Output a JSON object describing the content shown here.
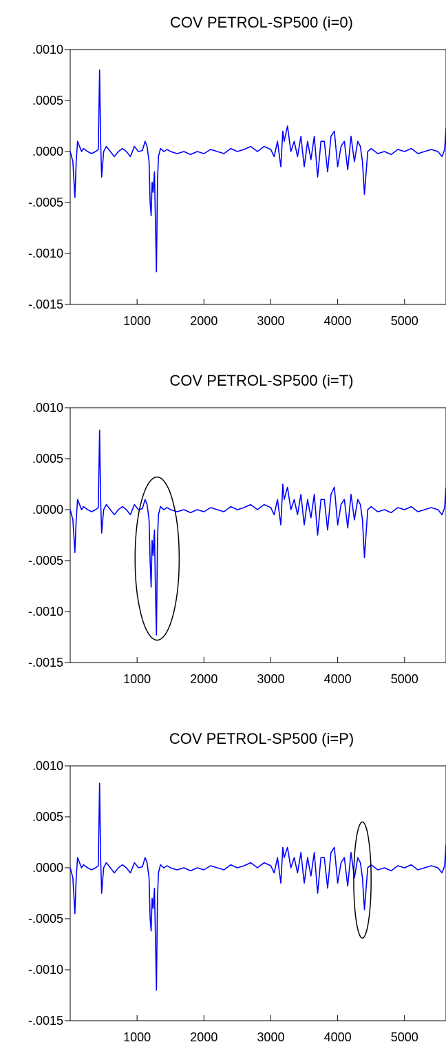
{
  "chart_data": [
    {
      "type": "line",
      "title": "COV PETROL-SP500 (i=0)",
      "xlabel": "",
      "ylabel": "",
      "xlim": [
        0,
        5620
      ],
      "ylim": [
        -0.0015,
        0.001
      ],
      "x_ticks": [
        1000,
        2000,
        3000,
        4000,
        5000
      ],
      "x_tick_labels": [
        "1000",
        "2000",
        "3000",
        "4000",
        "5000"
      ],
      "y_ticks": [
        0.001,
        0.0005,
        0.0,
        -0.0005,
        -0.001,
        -0.0015
      ],
      "y_tick_labels": [
        ".0010",
        ".0005",
        ".0000",
        "-.0005",
        "-.0010",
        "-.0015"
      ],
      "grid": false,
      "line_color": "#0000ff",
      "annotations": [],
      "series": [
        {
          "x": [
            0,
            40,
            70,
            90,
            110,
            140,
            170,
            200,
            260,
            320,
            380,
            420,
            440,
            455,
            470,
            500,
            540,
            600,
            660,
            720,
            780,
            840,
            900,
            960,
            1020,
            1080,
            1120,
            1150,
            1180,
            1195,
            1210,
            1225,
            1240,
            1260,
            1275,
            1290,
            1305,
            1320,
            1350,
            1400,
            1450,
            1500,
            1600,
            1700,
            1800,
            1900,
            2000,
            2100,
            2200,
            2300,
            2400,
            2500,
            2600,
            2700,
            2800,
            2900,
            3000,
            3050,
            3100,
            3150,
            3180,
            3200,
            3250,
            3300,
            3350,
            3400,
            3450,
            3500,
            3550,
            3600,
            3650,
            3700,
            3750,
            3800,
            3850,
            3900,
            3950,
            4000,
            4050,
            4100,
            4150,
            4200,
            4250,
            4300,
            4340,
            4370,
            4400,
            4450,
            4500,
            4600,
            4700,
            4800,
            4900,
            5000,
            5100,
            5200,
            5300,
            5400,
            5500,
            5560,
            5600,
            5620
          ],
          "y": [
            0.0,
            -0.0001,
            -0.00045,
            -0.0001,
            0.0001,
            5e-05,
            0.0,
            3e-05,
            0.0,
            -2e-05,
            0.0,
            2e-05,
            0.0008,
            0.0001,
            -0.00025,
            0.0,
            5e-05,
            0.0,
            -5e-05,
            0.0,
            3e-05,
            0.0,
            -5e-05,
            5e-05,
            0.0,
            1e-05,
            0.0001,
            5e-05,
            -0.0001,
            -0.0005,
            -0.00063,
            -0.0003,
            -0.0004,
            -0.0002,
            -0.0007,
            -0.00118,
            -0.0003,
            -5e-05,
            3e-05,
            0.0,
            2e-05,
            0.0,
            -2e-05,
            0.0,
            -3e-05,
            0.0,
            -2e-05,
            2e-05,
            0.0,
            -2e-05,
            3e-05,
            0.0,
            2e-05,
            5e-05,
            0.0,
            5e-05,
            2e-05,
            -5e-05,
            0.0001,
            -0.00015,
            0.0002,
            0.0001,
            0.00025,
            0.0,
            0.0001,
            -5e-05,
            0.00015,
            -0.00015,
            0.0001,
            -8e-05,
            0.00015,
            -0.00025,
            0.0001,
            0.0001,
            -0.0002,
            0.00015,
            0.0002,
            -0.00015,
            5e-05,
            0.0001,
            -0.00018,
            0.00015,
            -0.0001,
            0.0001,
            5e-05,
            -0.0001,
            -0.00042,
            0.0,
            3e-05,
            -2e-05,
            0.0,
            -3e-05,
            2e-05,
            0.0,
            3e-05,
            -2e-05,
            0.0,
            2e-05,
            0.0,
            -5e-05,
            2e-05,
            0.00023
          ]
        }
      ]
    },
    {
      "type": "line",
      "title": "COV PETROL-SP500 (i=T)",
      "xlabel": "",
      "ylabel": "",
      "xlim": [
        0,
        5620
      ],
      "ylim": [
        -0.0015,
        0.001
      ],
      "x_ticks": [
        1000,
        2000,
        3000,
        4000,
        5000
      ],
      "x_tick_labels": [
        "1000",
        "2000",
        "3000",
        "4000",
        "5000"
      ],
      "y_ticks": [
        0.001,
        0.0005,
        0.0,
        -0.0005,
        -0.001,
        -0.0015
      ],
      "y_tick_labels": [
        ".0010",
        ".0005",
        ".0000",
        "-.0005",
        "-.0010",
        "-.0015"
      ],
      "grid": false,
      "line_color": "#0000ff",
      "annotations": [
        {
          "type": "ellipse",
          "cx": 1300,
          "cy": -0.00048,
          "rx": 330,
          "ry": 0.0008
        }
      ],
      "series": [
        {
          "x": [
            0,
            40,
            70,
            90,
            110,
            140,
            170,
            200,
            260,
            320,
            380,
            420,
            440,
            455,
            470,
            500,
            540,
            600,
            660,
            720,
            780,
            840,
            900,
            960,
            1020,
            1080,
            1120,
            1150,
            1180,
            1195,
            1210,
            1225,
            1240,
            1260,
            1275,
            1290,
            1305,
            1320,
            1350,
            1400,
            1450,
            1500,
            1600,
            1700,
            1800,
            1900,
            2000,
            2100,
            2200,
            2300,
            2400,
            2500,
            2600,
            2700,
            2800,
            2900,
            3000,
            3050,
            3100,
            3150,
            3180,
            3200,
            3250,
            3300,
            3350,
            3400,
            3450,
            3500,
            3550,
            3600,
            3650,
            3700,
            3750,
            3800,
            3850,
            3900,
            3950,
            4000,
            4050,
            4100,
            4150,
            4200,
            4250,
            4300,
            4340,
            4370,
            4400,
            4450,
            4500,
            4600,
            4700,
            4800,
            4900,
            5000,
            5100,
            5200,
            5300,
            5400,
            5500,
            5560,
            5600,
            5620
          ],
          "y": [
            0.0,
            -0.0001,
            -0.00042,
            -0.0001,
            0.0001,
            5e-05,
            0.0,
            3e-05,
            0.0,
            -2e-05,
            0.0,
            2e-05,
            0.00078,
            0.0001,
            -0.00023,
            0.0,
            5e-05,
            0.0,
            -5e-05,
            0.0,
            3e-05,
            0.0,
            -5e-05,
            5e-05,
            0.0,
            1e-05,
            0.0001,
            5e-05,
            -0.0001,
            -0.0005,
            -0.00076,
            -0.0003,
            -0.00045,
            -0.0002,
            -0.0008,
            -0.00123,
            -0.0003,
            -5e-05,
            3e-05,
            0.0,
            2e-05,
            0.0,
            -2e-05,
            0.0,
            -3e-05,
            0.0,
            -2e-05,
            2e-05,
            0.0,
            -2e-05,
            3e-05,
            0.0,
            2e-05,
            5e-05,
            0.0,
            5e-05,
            2e-05,
            -5e-05,
            0.0001,
            -0.00015,
            0.00025,
            0.0001,
            0.00022,
            0.0,
            0.0001,
            -5e-05,
            0.00015,
            -0.00015,
            0.0001,
            -8e-05,
            0.00015,
            -0.00025,
            0.0001,
            0.0001,
            -0.0002,
            0.00015,
            0.00022,
            -0.00015,
            5e-05,
            0.0001,
            -0.00018,
            0.00015,
            -0.0001,
            0.0001,
            5e-05,
            -0.0001,
            -0.00047,
            0.0,
            3e-05,
            -2e-05,
            0.0,
            -3e-05,
            2e-05,
            0.0,
            3e-05,
            -2e-05,
            0.0,
            2e-05,
            0.0,
            -5e-05,
            2e-05,
            0.00022
          ]
        }
      ]
    },
    {
      "type": "line",
      "title": "COV PETROL-SP500 (i=P)",
      "xlabel": "",
      "ylabel": "",
      "xlim": [
        0,
        5620
      ],
      "ylim": [
        -0.0015,
        0.001
      ],
      "x_ticks": [
        1000,
        2000,
        3000,
        4000,
        5000
      ],
      "x_tick_labels": [
        "1000",
        "2000",
        "3000",
        "4000",
        "5000"
      ],
      "y_ticks": [
        0.001,
        0.0005,
        0.0,
        -0.0005,
        -0.001,
        -0.0015
      ],
      "y_tick_labels": [
        ".0010",
        ".0005",
        ".0000",
        "-.0005",
        "-.0010",
        "-.0015"
      ],
      "grid": false,
      "line_color": "#0000ff",
      "annotations": [
        {
          "type": "ellipse",
          "cx": 4370,
          "cy": -0.00012,
          "rx": 130,
          "ry": 0.00057
        }
      ],
      "series": [
        {
          "x": [
            0,
            40,
            70,
            90,
            110,
            140,
            170,
            200,
            260,
            320,
            380,
            420,
            440,
            455,
            470,
            500,
            540,
            600,
            660,
            720,
            780,
            840,
            900,
            960,
            1020,
            1080,
            1120,
            1150,
            1180,
            1195,
            1210,
            1225,
            1240,
            1260,
            1275,
            1290,
            1305,
            1320,
            1350,
            1400,
            1450,
            1500,
            1600,
            1700,
            1800,
            1900,
            2000,
            2100,
            2200,
            2300,
            2400,
            2500,
            2600,
            2700,
            2800,
            2900,
            3000,
            3050,
            3100,
            3150,
            3180,
            3200,
            3250,
            3300,
            3350,
            3400,
            3450,
            3500,
            3550,
            3600,
            3650,
            3700,
            3750,
            3800,
            3850,
            3900,
            3950,
            4000,
            4050,
            4100,
            4150,
            4200,
            4250,
            4300,
            4340,
            4370,
            4400,
            4450,
            4500,
            4600,
            4700,
            4800,
            4900,
            5000,
            5100,
            5200,
            5300,
            5400,
            5500,
            5560,
            5600,
            5620
          ],
          "y": [
            0.0,
            -0.0001,
            -0.00045,
            -0.0001,
            0.0001,
            5e-05,
            0.0,
            3e-05,
            0.0,
            -2e-05,
            0.0,
            2e-05,
            0.00083,
            0.0001,
            -0.00025,
            0.0,
            5e-05,
            0.0,
            -5e-05,
            0.0,
            3e-05,
            0.0,
            -5e-05,
            5e-05,
            0.0,
            1e-05,
            0.0001,
            5e-05,
            -0.0001,
            -0.0005,
            -0.00062,
            -0.0003,
            -0.0004,
            -0.0002,
            -0.0007,
            -0.0012,
            -0.0003,
            -5e-05,
            3e-05,
            0.0,
            2e-05,
            0.0,
            -2e-05,
            0.0,
            -3e-05,
            0.0,
            -2e-05,
            2e-05,
            0.0,
            -2e-05,
            3e-05,
            0.0,
            2e-05,
            5e-05,
            0.0,
            5e-05,
            2e-05,
            -5e-05,
            0.0001,
            -0.00015,
            0.0002,
            0.0001,
            0.0002,
            0.0,
            0.0001,
            -5e-05,
            0.00015,
            -0.00015,
            0.0001,
            -8e-05,
            0.00015,
            -0.00025,
            0.0001,
            0.0001,
            -0.0002,
            0.00015,
            0.0002,
            -0.00015,
            5e-05,
            0.0001,
            -0.00018,
            0.00015,
            -0.0001,
            0.0001,
            5e-05,
            -0.0001,
            -0.00041,
            0.0,
            3e-05,
            -2e-05,
            0.0,
            -3e-05,
            2e-05,
            0.0,
            3e-05,
            -2e-05,
            0.0,
            2e-05,
            0.0,
            -5e-05,
            2e-05,
            0.00023
          ]
        }
      ]
    }
  ]
}
